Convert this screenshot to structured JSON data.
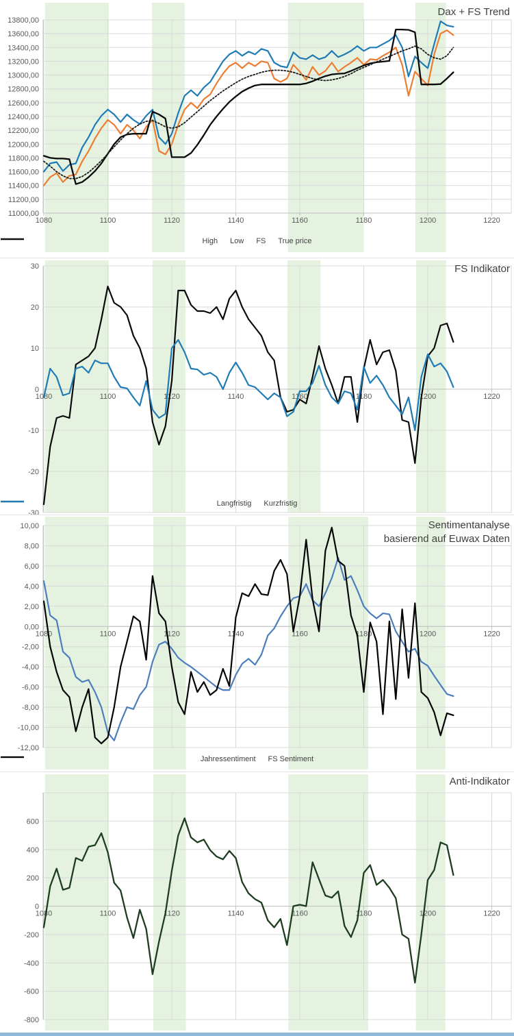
{
  "shared": {
    "band_color": "#e5f2e0",
    "grid_color": "#d9d9d9",
    "axis_color": "#bfbfbf",
    "tick_text_color": "#595959",
    "title_color": "#3f3f3f",
    "x_tick_values": [
      1080,
      1100,
      1120,
      1140,
      1160,
      1180,
      1200,
      1220
    ],
    "x_tick_labels": [
      "1080",
      "1100",
      "1120",
      "1140",
      "1160",
      "1180",
      "1200",
      "1220"
    ]
  },
  "bottom_bar_color": "#8fb9db",
  "chart_data": [
    {
      "type": "line",
      "title": "Dax + FS Trend",
      "title_lines": [
        "Dax + FS Trend"
      ],
      "xlim": [
        1080,
        1220
      ],
      "x_start": 1080,
      "x_step": 2,
      "ylim": [
        11000,
        13800
      ],
      "y_tick_values": [
        13800,
        13600,
        13400,
        13200,
        13000,
        12800,
        12600,
        12400,
        12200,
        12000,
        11800,
        11600,
        11400,
        11200,
        11000
      ],
      "y_tick_labels": [
        "13800,00",
        "13600,00",
        "13400,00",
        "13200,00",
        "13000,00",
        "12800,00",
        "12600,00",
        "12400,00",
        "12200,00",
        "12000,00",
        "11800,00",
        "11600,00",
        "11400,00",
        "11200,00",
        "11000,00"
      ],
      "grid": true,
      "legend_position": "bottom",
      "highlight_bands": [
        [
          1080.4,
          1100.3
        ],
        [
          1113.8,
          1124.0
        ],
        [
          1156.3,
          1180.0
        ],
        [
          1196.1,
          1205.7
        ]
      ],
      "series": [
        {
          "name": "High",
          "color": "#1f7bb6",
          "dash": "solid",
          "width": 2.2,
          "values": [
            11600,
            11720,
            11740,
            11610,
            11700,
            11720,
            11950,
            12100,
            12280,
            12410,
            12500,
            12430,
            12320,
            12430,
            12350,
            12290,
            12410,
            12500,
            12100,
            12000,
            12150,
            12450,
            12700,
            12780,
            12700,
            12820,
            12900,
            13050,
            13200,
            13300,
            13350,
            13280,
            13340,
            13300,
            13380,
            13350,
            13180,
            13130,
            13110,
            13330,
            13250,
            13230,
            13290,
            13230,
            13260,
            13350,
            13260,
            13300,
            13350,
            13420,
            13350,
            13400,
            13400,
            13450,
            13500,
            13580,
            13400,
            12980,
            13270,
            13180,
            13100,
            13450,
            13780,
            13720,
            13700
          ]
        },
        {
          "name": "Low",
          "color": "#ed7d31",
          "dash": "solid",
          "width": 2.2,
          "values": [
            11400,
            11520,
            11580,
            11450,
            11540,
            11560,
            11750,
            11900,
            12080,
            12230,
            12350,
            12280,
            12150,
            12280,
            12200,
            12080,
            12250,
            12350,
            11900,
            11850,
            12000,
            12280,
            12500,
            12600,
            12520,
            12650,
            12720,
            12880,
            13020,
            13130,
            13180,
            13100,
            13180,
            13130,
            13200,
            13180,
            12950,
            12900,
            12950,
            13150,
            13050,
            12930,
            13120,
            13000,
            13060,
            13180,
            13050,
            13120,
            13180,
            13250,
            13150,
            13230,
            13220,
            13280,
            13330,
            13400,
            13150,
            12700,
            13050,
            12950,
            12850,
            13300,
            13600,
            13650,
            13580
          ]
        },
        {
          "name": "FS",
          "color": "#0a0a0a",
          "dash": "solid",
          "width": 2.3,
          "values": [
            11830,
            11800,
            11790,
            11790,
            11780,
            11420,
            11450,
            11520,
            11610,
            11720,
            11860,
            12000,
            12100,
            12140,
            12150,
            12150,
            12150,
            12470,
            12430,
            12370,
            11810,
            11810,
            11810,
            11870,
            11990,
            12130,
            12280,
            12400,
            12510,
            12610,
            12690,
            12760,
            12810,
            12850,
            12865,
            12865,
            12865,
            12865,
            12865,
            12865,
            12865,
            12880,
            12910,
            12950,
            12985,
            13010,
            13020,
            13025,
            13060,
            13100,
            13140,
            13170,
            13185,
            13195,
            13205,
            13660,
            13660,
            13655,
            13620,
            12865,
            12865,
            12865,
            12870,
            12950,
            13040
          ]
        },
        {
          "name": "True price",
          "color": "#1a1a1a",
          "dash": "dotted",
          "width": 1.8,
          "values": [
            11750,
            11680,
            11600,
            11540,
            11500,
            11500,
            11530,
            11590,
            11670,
            11760,
            11860,
            11960,
            12060,
            12150,
            12230,
            12290,
            12330,
            12340,
            12300,
            12250,
            12230,
            12250,
            12310,
            12390,
            12470,
            12550,
            12630,
            12700,
            12770,
            12830,
            12890,
            12940,
            12980,
            13010,
            13040,
            13060,
            13070,
            13070,
            13060,
            13040,
            13010,
            12980,
            12950,
            12930,
            12920,
            12930,
            12950,
            12980,
            13020,
            13070,
            13110,
            13150,
            13190,
            13230,
            13270,
            13310,
            13350,
            13380,
            13420,
            13380,
            13300,
            13250,
            13230,
            13280,
            13400
          ]
        }
      ]
    },
    {
      "type": "line",
      "title": "FS Indikator",
      "title_lines": [
        "FS Indikator"
      ],
      "xlim": [
        1080,
        1220
      ],
      "x_start": 1080,
      "x_step": 2,
      "ylim": [
        -30,
        30
      ],
      "y_tick_values": [
        30,
        20,
        10,
        0,
        -10,
        -20,
        -30
      ],
      "y_tick_labels": [
        "30",
        "20",
        "10",
        "0",
        "-10",
        "-20",
        "-30"
      ],
      "grid": true,
      "legend_position": "bottom",
      "highlight_bands": [
        [
          1080.4,
          1100.3
        ],
        [
          1114.0,
          1124.3
        ],
        [
          1156.2,
          1166.5
        ],
        [
          1196.4,
          1205.7
        ]
      ],
      "series": [
        {
          "name": "Langfristig",
          "color": "#0a0a0a",
          "dash": "solid",
          "width": 2.2,
          "values": [
            -28,
            -14,
            -7,
            -6.5,
            -7,
            6,
            7,
            8,
            10,
            17,
            25,
            21,
            20,
            18,
            13,
            10,
            5,
            -8,
            -13.5,
            -9,
            2,
            24,
            24,
            20.5,
            19,
            19,
            18.5,
            20,
            17,
            22,
            24,
            20,
            17,
            15,
            13,
            9,
            7,
            -2,
            -5.5,
            -5,
            -2.5,
            -3.5,
            3,
            10.5,
            5,
            1,
            -3.5,
            3,
            3,
            -8,
            5,
            12,
            6,
            9,
            9.5,
            4.5,
            -7.5,
            -8,
            -18,
            -2,
            8,
            10,
            15.5,
            16,
            11.5
          ]
        },
        {
          "name": "Kurzfristig",
          "color": "#1f7bb6",
          "dash": "solid",
          "width": 2.2,
          "values": [
            -2,
            5,
            3,
            -1.5,
            -1,
            5,
            5.5,
            4,
            7,
            6.3,
            6.3,
            3,
            0.5,
            0.2,
            -2,
            -4,
            2,
            -5,
            -7,
            -6,
            10,
            12,
            9,
            5,
            4.8,
            3.5,
            4,
            3,
            0,
            4,
            6.5,
            4,
            1,
            0.5,
            -1,
            -2.5,
            -1,
            -2,
            -6.6,
            -5.5,
            -0.5,
            -0.5,
            1.5,
            5.7,
            1,
            -2,
            -3.5,
            -0.5,
            -1,
            -5,
            5.4,
            1.5,
            3.3,
            1,
            -2,
            -4,
            -6.1,
            -2,
            -10,
            3,
            8.5,
            5.5,
            6.3,
            4.3,
            0.5
          ]
        }
      ]
    },
    {
      "type": "line",
      "title": "Sentimentanalyse basierend auf Euwax Daten",
      "title_lines": [
        "Sentimentanalyse",
        "basierend auf Euwax Daten"
      ],
      "xlim": [
        1080,
        1220
      ],
      "x_start": 1080,
      "x_step": 2,
      "ylim": [
        -12,
        10
      ],
      "y_tick_values": [
        10,
        8,
        6,
        4,
        2,
        0,
        -2,
        -4,
        -6,
        -8,
        -10,
        -12
      ],
      "y_tick_labels": [
        "10,00",
        "8,00",
        "6,00",
        "4,00",
        "2,00",
        "0,00",
        "-2,00",
        "-4,00",
        "-6,00",
        "-8,00",
        "-10,00",
        "-12,00"
      ],
      "grid": true,
      "legend_position": "bottom",
      "highlight_bands": [
        [
          1080.4,
          1100.3
        ],
        [
          1114.2,
          1124.4
        ],
        [
          1156.4,
          1181.4
        ],
        [
          1196.4,
          1205.5
        ]
      ],
      "series": [
        {
          "name": "Jahressentiment",
          "color": "#4c7ebe",
          "dash": "solid",
          "width": 2.2,
          "values": [
            4.5,
            1.1,
            0.6,
            -2.5,
            -3.1,
            -5,
            -5.5,
            -5.3,
            -6.5,
            -8,
            -10.5,
            -11.3,
            -9.5,
            -8,
            -8.2,
            -6.8,
            -6,
            -3.5,
            -1.8,
            -1.5,
            -2.2,
            -3.1,
            -3.6,
            -4,
            -4.5,
            -5,
            -5.5,
            -6,
            -6.3,
            -6.3,
            -4.8,
            -3.7,
            -3.2,
            -3.8,
            -2.8,
            -0.9,
            -0.2,
            1,
            2,
            2.8,
            3,
            4.2,
            2.6,
            2,
            3.3,
            4.8,
            6.8,
            4.6,
            5,
            3.6,
            2,
            1.3,
            0.8,
            1.3,
            1.2,
            -0.5,
            -1.5,
            -2.5,
            -2.2,
            -3.5,
            -3.9,
            -4.9,
            -5.8,
            -6.7,
            -6.9
          ]
        },
        {
          "name": "FS Sentiment",
          "color": "#050505",
          "dash": "solid",
          "width": 2.2,
          "values": [
            2.5,
            -2,
            -4.5,
            -6.3,
            -7,
            -10.4,
            -8,
            -6.2,
            -11,
            -11.6,
            -11,
            -8,
            -4,
            -1.5,
            1,
            0.5,
            -3.3,
            5,
            1.3,
            0.5,
            -4,
            -7.5,
            -8.7,
            -4.5,
            -6.5,
            -5.5,
            -6.8,
            -6.3,
            -4.2,
            -5.9,
            0.9,
            3.3,
            3,
            4.2,
            3.2,
            3.1,
            5.5,
            6.6,
            5.2,
            -0.5,
            3,
            8.6,
            2.7,
            -0.5,
            7.5,
            9.8,
            6.5,
            6,
            1.1,
            -0.9,
            -6.5,
            0.4,
            -1.5,
            -8.7,
            0.5,
            -7.2,
            1.7,
            -5.1,
            2.3,
            -6.5,
            -7.1,
            -8.5,
            -10.8,
            -8.6,
            -8.8
          ]
        }
      ]
    },
    {
      "type": "line",
      "title": "Anti-Indikator",
      "title_lines": [
        "Anti-Indikator"
      ],
      "xlim": [
        1080,
        1220
      ],
      "x_start": 1080,
      "x_step": 2,
      "ylim": [
        -800,
        800
      ],
      "y_tick_values": [
        800,
        600,
        400,
        200,
        0,
        -200,
        -400,
        -600,
        -800
      ],
      "y_tick_labels": [
        "",
        "600",
        "400",
        "200",
        "0",
        "-200",
        "-400",
        "-600",
        "-800"
      ],
      "grid": true,
      "legend_position": "none",
      "highlight_bands": [
        [
          1080.4,
          1100.3
        ],
        [
          1114.2,
          1124.4
        ],
        [
          1156.4,
          1181.4
        ],
        [
          1196.3,
          1205.5
        ]
      ],
      "series": [
        {
          "name": "Anti-Indikator",
          "color": "#1e3d20",
          "dash": "solid",
          "width": 2.3,
          "values": [
            -150,
            140,
            265,
            115,
            130,
            340,
            320,
            420,
            430,
            515,
            380,
            165,
            110,
            -80,
            -225,
            -25,
            -160,
            -480,
            -250,
            -50,
            250,
            500,
            620,
            485,
            450,
            470,
            395,
            350,
            330,
            390,
            340,
            170,
            90,
            50,
            25,
            -100,
            -150,
            -90,
            -275,
            0,
            10,
            0,
            310,
            190,
            75,
            60,
            105,
            -140,
            -218,
            -100,
            235,
            290,
            150,
            185,
            130,
            56,
            -200,
            -230,
            -540,
            -200,
            185,
            255,
            450,
            430,
            220
          ]
        }
      ]
    }
  ]
}
